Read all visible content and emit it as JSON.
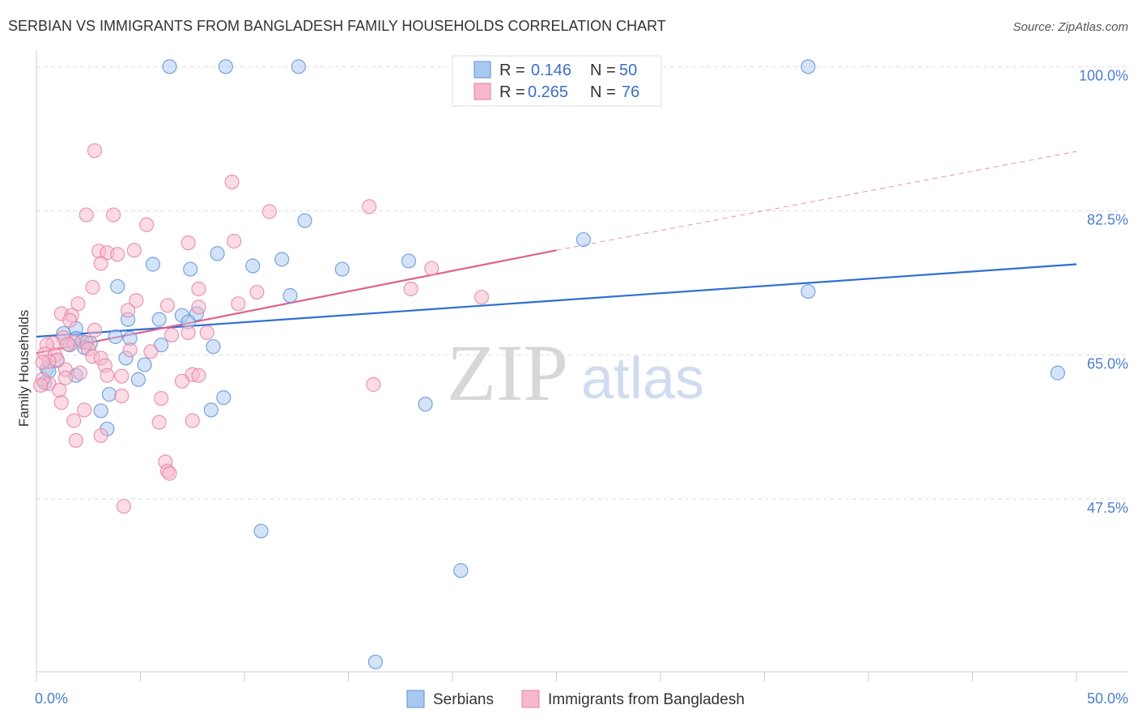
{
  "header": {
    "title": "SERBIAN VS IMMIGRANTS FROM BANGLADESH FAMILY HOUSEHOLDS CORRELATION CHART",
    "source": "Source: ZipAtlas.com"
  },
  "watermark": {
    "zip": "ZIP",
    "atlas": "atlas"
  },
  "stats_legend": {
    "rows": [
      {
        "r_label": "R =",
        "r_value": "0.146",
        "n_label": "N =",
        "n_value": "50",
        "color": "#a9c8f0"
      },
      {
        "r_label": "R =",
        "r_value": "0.265",
        "n_label": "N =",
        "n_value": "76",
        "color": "#f7b8cb"
      }
    ]
  },
  "bottom_legend": {
    "items": [
      {
        "label": "Serbians",
        "color": "#a9c8f0"
      },
      {
        "label": "Immigrants from Bangladesh",
        "color": "#f7b8cb"
      }
    ]
  },
  "colors": {
    "serbian_fill": "#a9c8f0",
    "serbian_stroke": "#5b8fd6",
    "bangladesh_fill": "#f7b8cb",
    "bangladesh_stroke": "#e57fa0",
    "serbian_line": "#2f6fd0",
    "bangladesh_line": "#e0608c",
    "tick_label": "#4a7fd0",
    "grid": "#dddddd"
  },
  "chart_data": {
    "type": "scatter",
    "title": "SERBIAN VS IMMIGRANTS FROM BANGLADESH FAMILY HOUSEHOLDS CORRELATION CHART",
    "xlabel": "",
    "ylabel": "Family Households",
    "xlim": [
      0,
      50
    ],
    "ylim": [
      26.5,
      102
    ],
    "x_tick_labels": [
      "0.0%",
      "50.0%"
    ],
    "y_ticks": [
      47.5,
      65.0,
      82.5,
      100.0
    ],
    "y_tick_labels": [
      "47.5%",
      "65.0%",
      "82.5%",
      "100.0%"
    ],
    "grid": true,
    "legend_position": "top-center",
    "series": [
      {
        "name": "Serbians",
        "r": 0.146,
        "n": 50,
        "trend": {
          "x0": 0,
          "y0": 67.2,
          "x1": 50,
          "y1": 76.0
        },
        "points": [
          [
            6.4,
            100.0
          ],
          [
            9.1,
            100.0
          ],
          [
            12.6,
            100.0
          ],
          [
            37.1,
            100.0
          ],
          [
            12.9,
            81.3
          ],
          [
            26.3,
            79.0
          ],
          [
            17.9,
            76.4
          ],
          [
            8.7,
            77.3
          ],
          [
            11.8,
            76.6
          ],
          [
            5.6,
            76.0
          ],
          [
            14.7,
            75.4
          ],
          [
            7.4,
            75.4
          ],
          [
            10.4,
            75.8
          ],
          [
            3.9,
            73.3
          ],
          [
            12.2,
            72.2
          ],
          [
            37.1,
            72.7
          ],
          [
            4.4,
            69.3
          ],
          [
            7.0,
            69.8
          ],
          [
            7.7,
            70.0
          ],
          [
            5.9,
            69.3
          ],
          [
            7.3,
            69.0
          ],
          [
            1.9,
            68.2
          ],
          [
            1.3,
            67.6
          ],
          [
            1.9,
            67.0
          ],
          [
            3.8,
            67.2
          ],
          [
            4.5,
            67.0
          ],
          [
            2.2,
            66.6
          ],
          [
            2.6,
            66.4
          ],
          [
            1.6,
            66.2
          ],
          [
            6.0,
            66.2
          ],
          [
            8.5,
            66.0
          ],
          [
            2.3,
            65.9
          ],
          [
            4.3,
            64.6
          ],
          [
            1.0,
            64.3
          ],
          [
            5.2,
            63.8
          ],
          [
            0.5,
            63.3
          ],
          [
            1.9,
            62.5
          ],
          [
            4.9,
            62.0
          ],
          [
            9.0,
            59.8
          ],
          [
            3.5,
            60.2
          ],
          [
            49.1,
            62.8
          ],
          [
            18.7,
            59.0
          ],
          [
            3.1,
            58.2
          ],
          [
            8.4,
            58.3
          ],
          [
            3.4,
            56.0
          ],
          [
            10.8,
            43.6
          ],
          [
            20.4,
            38.8
          ],
          [
            16.3,
            27.7
          ],
          [
            0.4,
            61.6
          ],
          [
            0.6,
            63.0
          ]
        ]
      },
      {
        "name": "Immigrants from Bangladesh",
        "r": 0.265,
        "n": 76,
        "trend": {
          "x0": 0,
          "y0": 65.2,
          "x1": 25,
          "y1": 77.7,
          "dashed_to_x": 50,
          "dashed_to_y": 89.7
        },
        "points": [
          [
            2.8,
            89.8
          ],
          [
            9.4,
            86.0
          ],
          [
            3.7,
            82.0
          ],
          [
            11.2,
            82.4
          ],
          [
            16.0,
            83.0
          ],
          [
            2.4,
            82.0
          ],
          [
            5.3,
            80.8
          ],
          [
            9.5,
            78.8
          ],
          [
            7.3,
            78.6
          ],
          [
            4.7,
            77.7
          ],
          [
            3.0,
            77.6
          ],
          [
            3.4,
            77.4
          ],
          [
            3.9,
            77.2
          ],
          [
            3.1,
            76.1
          ],
          [
            19.0,
            75.5
          ],
          [
            2.7,
            73.2
          ],
          [
            7.8,
            73.0
          ],
          [
            18.0,
            73.0
          ],
          [
            10.6,
            72.6
          ],
          [
            21.4,
            72.0
          ],
          [
            4.8,
            71.6
          ],
          [
            9.7,
            71.2
          ],
          [
            6.3,
            71.0
          ],
          [
            7.8,
            70.8
          ],
          [
            2.0,
            71.2
          ],
          [
            4.4,
            70.4
          ],
          [
            1.2,
            70.0
          ],
          [
            1.7,
            69.8
          ],
          [
            1.6,
            69.2
          ],
          [
            7.3,
            67.7
          ],
          [
            8.2,
            67.7
          ],
          [
            2.8,
            68.0
          ],
          [
            6.5,
            67.4
          ],
          [
            1.3,
            67.1
          ],
          [
            2.4,
            66.5
          ],
          [
            1.8,
            66.5
          ],
          [
            0.8,
            66.4
          ],
          [
            1.5,
            66.3
          ],
          [
            0.5,
            66.2
          ],
          [
            2.5,
            65.7
          ],
          [
            4.5,
            65.6
          ],
          [
            5.5,
            65.4
          ],
          [
            0.4,
            65.1
          ],
          [
            0.9,
            65.0
          ],
          [
            2.7,
            64.8
          ],
          [
            3.1,
            64.6
          ],
          [
            1.0,
            64.4
          ],
          [
            0.6,
            64.2
          ],
          [
            0.3,
            64.1
          ],
          [
            3.3,
            63.7
          ],
          [
            1.4,
            63.2
          ],
          [
            2.1,
            62.8
          ],
          [
            3.4,
            62.5
          ],
          [
            4.1,
            62.4
          ],
          [
            7.5,
            62.6
          ],
          [
            7.8,
            62.5
          ],
          [
            1.4,
            62.2
          ],
          [
            7.0,
            61.8
          ],
          [
            0.6,
            61.5
          ],
          [
            16.2,
            61.4
          ],
          [
            1.1,
            60.7
          ],
          [
            4.1,
            60.0
          ],
          [
            6.0,
            59.7
          ],
          [
            1.2,
            59.2
          ],
          [
            2.3,
            58.3
          ],
          [
            1.8,
            57.0
          ],
          [
            7.5,
            57.0
          ],
          [
            5.9,
            56.8
          ],
          [
            3.1,
            55.2
          ],
          [
            1.9,
            54.6
          ],
          [
            6.2,
            52.0
          ],
          [
            6.3,
            50.9
          ],
          [
            6.4,
            50.6
          ],
          [
            4.2,
            46.6
          ],
          [
            0.3,
            62.0
          ],
          [
            0.2,
            61.3
          ]
        ]
      }
    ]
  }
}
